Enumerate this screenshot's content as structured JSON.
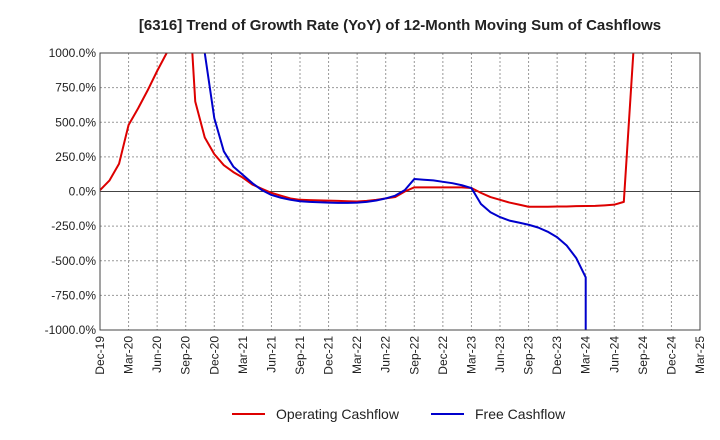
{
  "chart_data": {
    "type": "line",
    "title": "[6316]  Trend of Growth Rate (YoY) of 12-Month Moving Sum of Cashflows",
    "xlabel": "",
    "ylabel": "",
    "y_unit": "%",
    "ylim": [
      -1000,
      1000
    ],
    "y_ticks": [
      1000,
      750,
      500,
      250,
      0,
      -250,
      -500,
      -750,
      -1000
    ],
    "y_tick_labels": [
      "1000.0%",
      "750.0%",
      "500.0%",
      "250.0%",
      "0.0%",
      "-250.0%",
      "-500.0%",
      "-750.0%",
      "-1000.0%"
    ],
    "x_tick_labels": [
      "Dec-19",
      "Mar-20",
      "Jun-20",
      "Sep-20",
      "Dec-20",
      "Mar-21",
      "Jun-21",
      "Sep-21",
      "Dec-21",
      "Mar-22",
      "Jun-22",
      "Sep-22",
      "Dec-22",
      "Mar-23",
      "Jun-23",
      "Sep-23",
      "Dec-23",
      "Mar-24",
      "Jun-24",
      "Sep-24",
      "Dec-24",
      "Mar-25"
    ],
    "grid": true,
    "legend_position": "bottom",
    "series": [
      {
        "name": "Operating Cashflow",
        "color": "#dd0000",
        "points": [
          [
            "Dec-19",
            10
          ],
          [
            "Jan-20",
            80
          ],
          [
            "Feb-20",
            200
          ],
          [
            "Mar-20",
            480
          ],
          [
            "Apr-20",
            600
          ],
          [
            "May-20",
            730
          ],
          [
            "Jun-20",
            870
          ],
          [
            "Jul-20",
            1000
          ],
          [
            "Aug-20",
            1500
          ],
          [
            "Sep-20",
            1800
          ],
          [
            "Oct-20",
            650
          ],
          [
            "Nov-20",
            390
          ],
          [
            "Dec-20",
            270
          ],
          [
            "Jan-21",
            190
          ],
          [
            "Feb-21",
            140
          ],
          [
            "Mar-21",
            100
          ],
          [
            "Apr-21",
            50
          ],
          [
            "May-21",
            20
          ],
          [
            "Jun-21",
            -10
          ],
          [
            "Jul-21",
            -30
          ],
          [
            "Aug-21",
            -50
          ],
          [
            "Sep-21",
            -60
          ],
          [
            "Oct-21",
            -62
          ],
          [
            "Nov-21",
            -64
          ],
          [
            "Dec-21",
            -66
          ],
          [
            "Jan-22",
            -68
          ],
          [
            "Feb-22",
            -70
          ],
          [
            "Mar-22",
            -72
          ],
          [
            "Apr-22",
            -68
          ],
          [
            "May-22",
            -60
          ],
          [
            "Jun-22",
            -50
          ],
          [
            "Jul-22",
            -40
          ],
          [
            "Aug-22",
            0
          ],
          [
            "Sep-22",
            30
          ],
          [
            "Oct-22",
            30
          ],
          [
            "Nov-22",
            30
          ],
          [
            "Dec-22",
            30
          ],
          [
            "Jan-23",
            30
          ],
          [
            "Feb-23",
            30
          ],
          [
            "Mar-23",
            25
          ],
          [
            "Apr-23",
            -10
          ],
          [
            "May-23",
            -40
          ],
          [
            "Jun-23",
            -60
          ],
          [
            "Jul-23",
            -80
          ],
          [
            "Aug-23",
            -95
          ],
          [
            "Sep-23",
            -110
          ],
          [
            "Oct-23",
            -110
          ],
          [
            "Nov-23",
            -110
          ],
          [
            "Dec-23",
            -108
          ],
          [
            "Jan-24",
            -108
          ],
          [
            "Feb-24",
            -106
          ],
          [
            "Mar-24",
            -105
          ],
          [
            "Apr-24",
            -104
          ],
          [
            "May-24",
            -100
          ],
          [
            "Jun-24",
            -95
          ],
          [
            "Jul-24",
            -75
          ],
          [
            "Aug-24",
            1000
          ],
          [
            "Sep-24",
            1500
          ]
        ]
      },
      {
        "name": "Free Cashflow",
        "color": "#0000cc",
        "points": [
          [
            "Oct-20",
            2000
          ],
          [
            "Nov-20",
            1000
          ],
          [
            "Dec-20",
            530
          ],
          [
            "Jan-21",
            290
          ],
          [
            "Feb-21",
            180
          ],
          [
            "Mar-21",
            120
          ],
          [
            "Apr-21",
            60
          ],
          [
            "May-21",
            10
          ],
          [
            "Jun-21",
            -25
          ],
          [
            "Jul-21",
            -45
          ],
          [
            "Aug-21",
            -60
          ],
          [
            "Sep-21",
            -70
          ],
          [
            "Oct-21",
            -75
          ],
          [
            "Nov-21",
            -78
          ],
          [
            "Dec-21",
            -80
          ],
          [
            "Jan-22",
            -82
          ],
          [
            "Feb-22",
            -82
          ],
          [
            "Mar-22",
            -80
          ],
          [
            "Apr-22",
            -75
          ],
          [
            "May-22",
            -65
          ],
          [
            "Jun-22",
            -50
          ],
          [
            "Jul-22",
            -30
          ],
          [
            "Aug-22",
            10
          ],
          [
            "Sep-22",
            90
          ],
          [
            "Oct-22",
            85
          ],
          [
            "Nov-22",
            80
          ],
          [
            "Dec-22",
            70
          ],
          [
            "Jan-23",
            60
          ],
          [
            "Feb-23",
            45
          ],
          [
            "Mar-23",
            25
          ],
          [
            "Apr-23",
            -90
          ],
          [
            "May-23",
            -150
          ],
          [
            "Jun-23",
            -185
          ],
          [
            "Jul-23",
            -210
          ],
          [
            "Aug-23",
            -225
          ],
          [
            "Sep-23",
            -240
          ],
          [
            "Oct-23",
            -260
          ],
          [
            "Nov-23",
            -290
          ],
          [
            "Dec-23",
            -330
          ],
          [
            "Jan-24",
            -390
          ],
          [
            "Feb-24",
            -480
          ],
          [
            "Mar-24",
            -620
          ],
          [
            "Mar-24",
            -1000
          ]
        ]
      }
    ]
  }
}
